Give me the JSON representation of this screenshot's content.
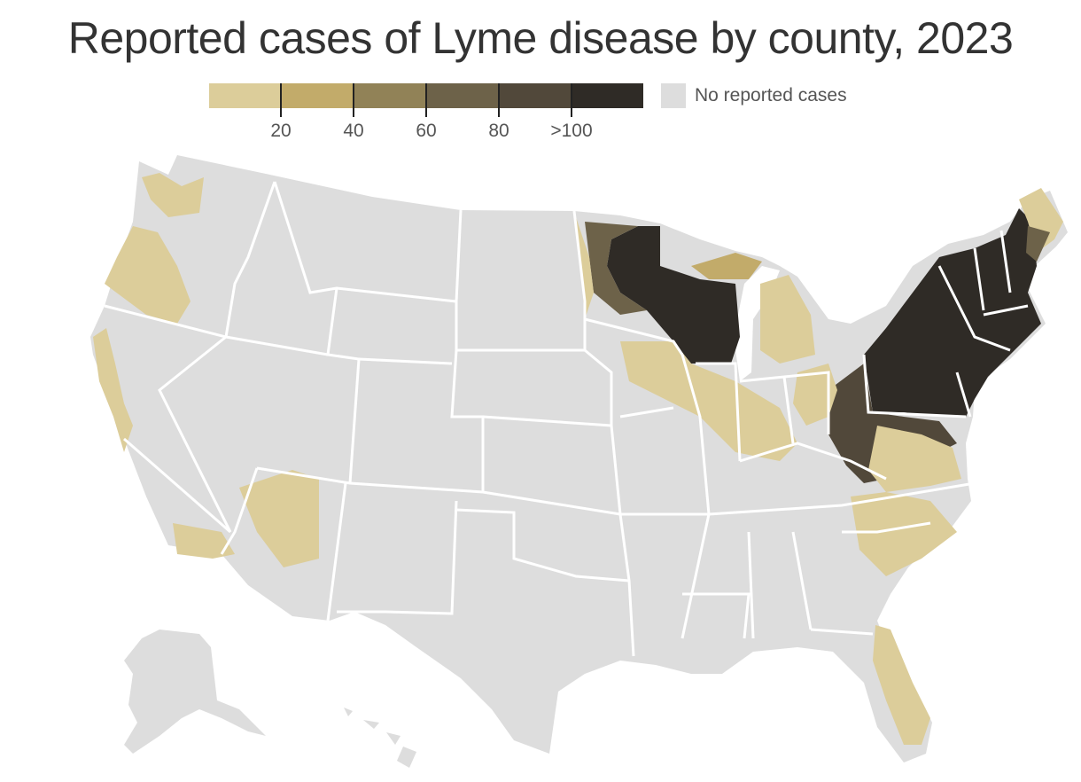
{
  "title": "Reported cases of Lyme disease by county, 2023",
  "legend": {
    "bins": [
      {
        "color": "#dccd9a"
      },
      {
        "color": "#c2ab6a"
      },
      {
        "color": "#918257"
      },
      {
        "color": "#6d6249"
      },
      {
        "color": "#51483a"
      },
      {
        "color": "#2f2b26"
      }
    ],
    "tick_labels": [
      "20",
      "40",
      "60",
      "80",
      ">100"
    ],
    "no_cases": {
      "label": "No reported cases",
      "color": "#dddddd"
    }
  },
  "colors": {
    "land": "#dddddd",
    "state_border": "#ffffff",
    "county_border": "#ececec"
  },
  "regions": [
    {
      "name": "northeast",
      "level": ">100"
    },
    {
      "name": "upper-midwest",
      "level": ">100"
    },
    {
      "name": "mid-atlantic",
      "level": ">100"
    },
    {
      "name": "pacific-northwest",
      "level": "1-20"
    },
    {
      "name": "california",
      "level": "1-20"
    },
    {
      "name": "florida",
      "level": "1-20"
    }
  ]
}
